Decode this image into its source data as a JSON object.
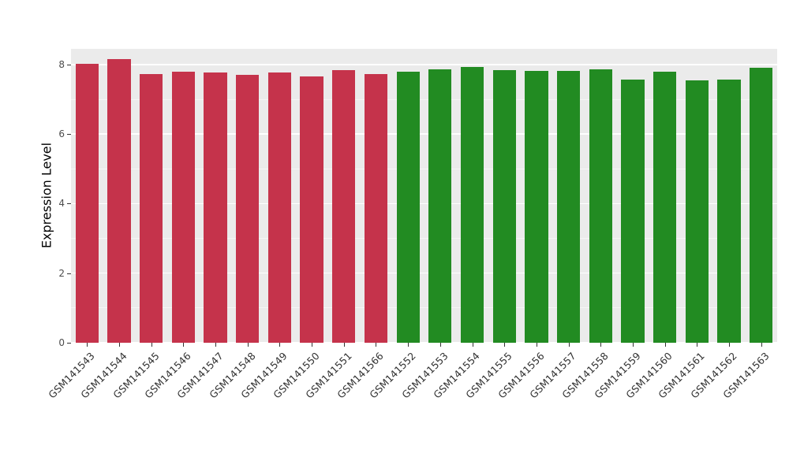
{
  "chart_data": {
    "type": "bar",
    "title": "",
    "xlabel": "",
    "ylabel": "Expression Level",
    "categories": [
      "GSM141543",
      "GSM141544",
      "GSM141545",
      "GSM141546",
      "GSM141547",
      "GSM141548",
      "GSM141549",
      "GSM141550",
      "GSM141551",
      "GSM141566",
      "GSM141552",
      "GSM141553",
      "GSM141554",
      "GSM141555",
      "GSM141556",
      "GSM141557",
      "GSM141558",
      "GSM141559",
      "GSM141560",
      "GSM141561",
      "GSM141562",
      "GSM141563"
    ],
    "values": [
      8.02,
      8.15,
      7.73,
      7.8,
      7.77,
      7.71,
      7.77,
      7.66,
      7.84,
      7.73,
      7.8,
      7.87,
      7.93,
      7.84,
      7.82,
      7.82,
      7.87,
      7.57,
      7.8,
      7.55,
      7.57,
      7.91
    ],
    "bar_groups": [
      "red",
      "red",
      "red",
      "red",
      "red",
      "red",
      "red",
      "red",
      "red",
      "red",
      "green",
      "green",
      "green",
      "green",
      "green",
      "green",
      "green",
      "green",
      "green",
      "green",
      "green",
      "green"
    ],
    "group_colors": {
      "red": "#C5334B",
      "green": "#228B22"
    },
    "ylim": [
      0,
      8.45
    ],
    "yticks": [
      0,
      2,
      4,
      6,
      8
    ],
    "ytick_labels": [
      "0",
      "2",
      "4",
      "6",
      "8"
    ],
    "minor_ticks": [
      1,
      3,
      5,
      7
    ],
    "grid": true,
    "legend": "none",
    "panel_bg": "#EBEBEB",
    "grid_major_color": "#FFFFFF",
    "grid_minor_color": "#FFFFFF"
  }
}
